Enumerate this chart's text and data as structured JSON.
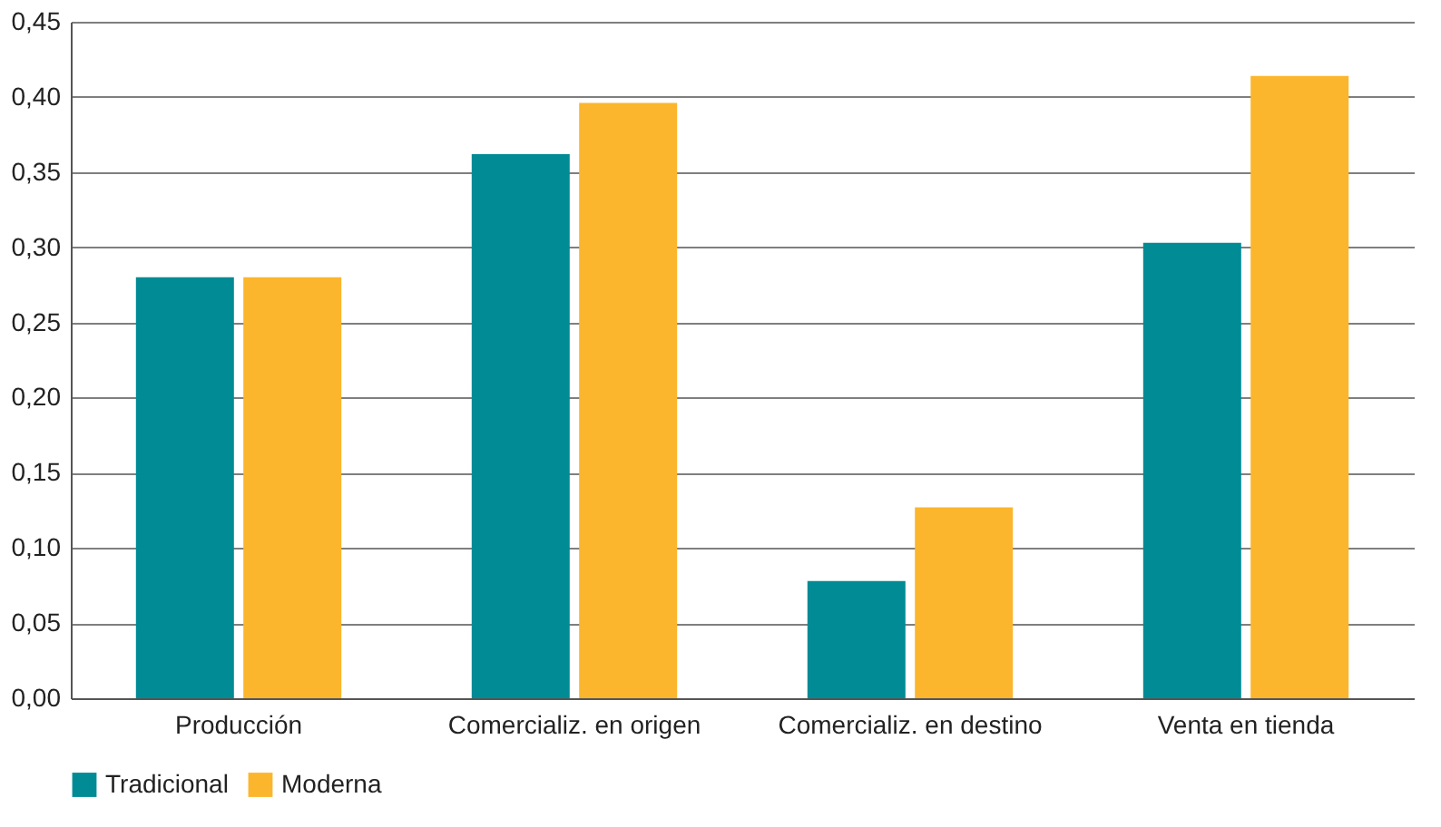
{
  "chart_data": {
    "type": "bar",
    "categories": [
      "Producción",
      "Comercializ. en origen",
      "Comercializ. en destino",
      "Venta en tienda"
    ],
    "series": [
      {
        "name": "Tradicional",
        "color": "#008b95",
        "values": [
          0.28,
          0.362,
          0.078,
          0.303
        ]
      },
      {
        "name": "Moderna",
        "color": "#fbb62d",
        "values": [
          0.28,
          0.396,
          0.127,
          0.414
        ]
      }
    ],
    "ylim": [
      0,
      0.45
    ],
    "yticks": [
      {
        "value": 0,
        "label": "0,00"
      },
      {
        "value": 0.05,
        "label": "0,05"
      },
      {
        "value": 0.1,
        "label": "0,10"
      },
      {
        "value": 0.15,
        "label": "0,15"
      },
      {
        "value": 0.2,
        "label": "0,20"
      },
      {
        "value": 0.25,
        "label": "0,25"
      },
      {
        "value": 0.3,
        "label": "0,30"
      },
      {
        "value": 0.35,
        "label": "0,35"
      },
      {
        "value": 0.4,
        "label": "0,40"
      },
      {
        "value": 0.45,
        "label": "0,45"
      }
    ],
    "grid": "y",
    "legend": "bottom"
  }
}
